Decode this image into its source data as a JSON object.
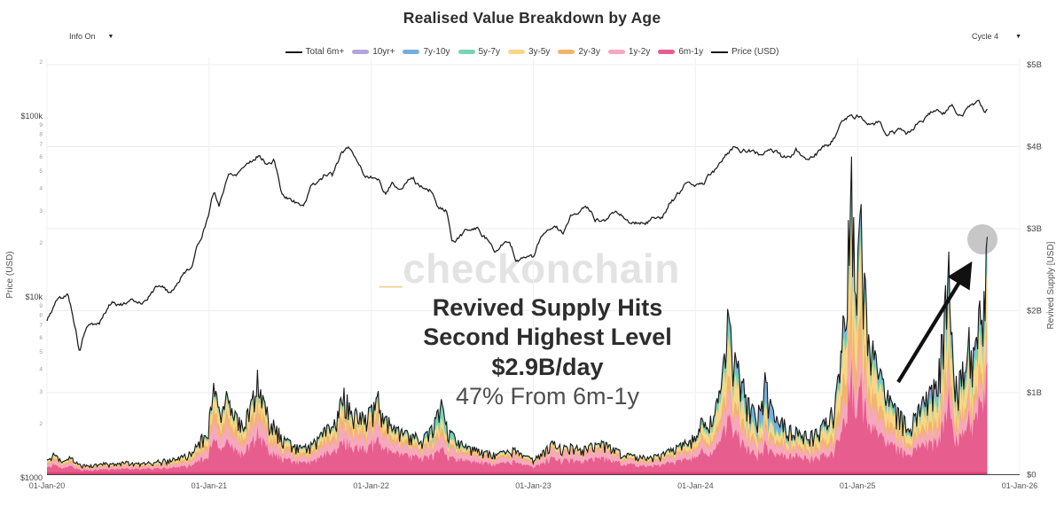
{
  "header": {
    "title": "Realised Value Breakdown by Age"
  },
  "controls": {
    "info_label": "Info On",
    "cycle_label": "Cycle 4",
    "caret": "▼"
  },
  "watermark": {
    "prefix": "_",
    "text": "checkonchain"
  },
  "annotation": {
    "line1": "Revived Supply Hits",
    "line2": "Second Highest Level",
    "line3": "$2.9B/day",
    "line4": "47% From 6m-1y"
  },
  "legend": [
    {
      "label": "Total 6m+",
      "color": "#1a1a1a",
      "type": "line"
    },
    {
      "label": "10yr+",
      "color": "#b3a4de",
      "type": "band"
    },
    {
      "label": "7y-10y",
      "color": "#74aede",
      "type": "band"
    },
    {
      "label": "5y-7y",
      "color": "#74d6b5",
      "type": "band"
    },
    {
      "label": "3y-5y",
      "color": "#f7d787",
      "type": "band"
    },
    {
      "label": "2y-3y",
      "color": "#f2b46c",
      "type": "band"
    },
    {
      "label": "1y-2y",
      "color": "#f6a8c0",
      "type": "band"
    },
    {
      "label": "6m-1y",
      "color": "#e75d8d",
      "type": "band"
    },
    {
      "label": "Price (USD)",
      "color": "#1a1a1a",
      "type": "line"
    }
  ],
  "chart_data": {
    "type": "area",
    "title": "Realised Value Breakdown by Age",
    "x_ticks": [
      [
        2020,
        "01-Jan-20"
      ],
      [
        2021,
        "01-Jan-21"
      ],
      [
        2022,
        "01-Jan-22"
      ],
      [
        2023,
        "01-Jan-23"
      ],
      [
        2024,
        "01-Jan-24"
      ],
      [
        2025,
        "01-Jan-25"
      ],
      [
        2026,
        "01-Jan-26"
      ]
    ],
    "y_left": {
      "title": "Price (USD)",
      "scale": "log",
      "range_usd": [
        1000,
        215000
      ],
      "major_ticks": [
        [
          100000,
          "$100k"
        ],
        [
          10000,
          "$10k"
        ],
        [
          1000,
          "$1000"
        ]
      ]
    },
    "y_right": {
      "title": "Revived Supply [USD]",
      "scale": "linear",
      "range_billions": [
        0,
        5
      ],
      "ticks": [
        [
          0,
          "$0"
        ],
        [
          1,
          "$1B"
        ],
        [
          2,
          "$2B"
        ],
        [
          3,
          "$3B"
        ],
        [
          4,
          "$4B"
        ],
        [
          5,
          "$5B"
        ]
      ]
    },
    "price_usd_keyframes": [
      [
        2020.0,
        7300
      ],
      [
        2020.06,
        9500
      ],
      [
        2020.13,
        10200
      ],
      [
        2020.2,
        5000
      ],
      [
        2020.24,
        6800
      ],
      [
        2020.32,
        7000
      ],
      [
        2020.4,
        9400
      ],
      [
        2020.5,
        9100
      ],
      [
        2020.6,
        9600
      ],
      [
        2020.7,
        11800
      ],
      [
        2020.76,
        10600
      ],
      [
        2020.83,
        13000
      ],
      [
        2020.9,
        15500
      ],
      [
        2020.96,
        23000
      ],
      [
        2021.0,
        29500
      ],
      [
        2021.03,
        38000
      ],
      [
        2021.06,
        32000
      ],
      [
        2021.12,
        47000
      ],
      [
        2021.17,
        49000
      ],
      [
        2021.22,
        55000
      ],
      [
        2021.27,
        58500
      ],
      [
        2021.31,
        63000
      ],
      [
        2021.36,
        55000
      ],
      [
        2021.4,
        57000
      ],
      [
        2021.45,
        37000
      ],
      [
        2021.5,
        34500
      ],
      [
        2021.55,
        33000
      ],
      [
        2021.58,
        31500
      ],
      [
        2021.62,
        39500
      ],
      [
        2021.68,
        44500
      ],
      [
        2021.72,
        48500
      ],
      [
        2021.76,
        47000
      ],
      [
        2021.82,
        61500
      ],
      [
        2021.86,
        66500
      ],
      [
        2021.92,
        57000
      ],
      [
        2021.96,
        47500
      ],
      [
        2022.0,
        46500
      ],
      [
        2022.05,
        43500
      ],
      [
        2022.09,
        38000
      ],
      [
        2022.13,
        44000
      ],
      [
        2022.17,
        40000
      ],
      [
        2022.22,
        43000
      ],
      [
        2022.26,
        46500
      ],
      [
        2022.3,
        41000
      ],
      [
        2022.36,
        39500
      ],
      [
        2022.42,
        29500
      ],
      [
        2022.46,
        30000
      ],
      [
        2022.5,
        19500
      ],
      [
        2022.55,
        21500
      ],
      [
        2022.6,
        23500
      ],
      [
        2022.65,
        24000
      ],
      [
        2022.7,
        21500
      ],
      [
        2022.76,
        19000
      ],
      [
        2022.8,
        20000
      ],
      [
        2022.85,
        19500
      ],
      [
        2022.89,
        16000
      ],
      [
        2022.94,
        16800
      ],
      [
        2023.0,
        16600
      ],
      [
        2023.05,
        21000
      ],
      [
        2023.09,
        23000
      ],
      [
        2023.14,
        24500
      ],
      [
        2023.18,
        22000
      ],
      [
        2023.23,
        28000
      ],
      [
        2023.28,
        27500
      ],
      [
        2023.33,
        29500
      ],
      [
        2023.38,
        26500
      ],
      [
        2023.44,
        27000
      ],
      [
        2023.5,
        30500
      ],
      [
        2023.55,
        29500
      ],
      [
        2023.6,
        26000
      ],
      [
        2023.65,
        26000
      ],
      [
        2023.7,
        26500
      ],
      [
        2023.76,
        27500
      ],
      [
        2023.8,
        28500
      ],
      [
        2023.85,
        34500
      ],
      [
        2023.9,
        37500
      ],
      [
        2023.95,
        42500
      ],
      [
        2024.0,
        43000
      ],
      [
        2024.05,
        42500
      ],
      [
        2024.1,
        48000
      ],
      [
        2024.14,
        52000
      ],
      [
        2024.18,
        62500
      ],
      [
        2024.22,
        68000
      ],
      [
        2024.26,
        70000
      ],
      [
        2024.3,
        66000
      ],
      [
        2024.35,
        64500
      ],
      [
        2024.4,
        61000
      ],
      [
        2024.45,
        67000
      ],
      [
        2024.49,
        66000
      ],
      [
        2024.53,
        58000
      ],
      [
        2024.58,
        61000
      ],
      [
        2024.62,
        65500
      ],
      [
        2024.66,
        58500
      ],
      [
        2024.7,
        55500
      ],
      [
        2024.74,
        60500
      ],
      [
        2024.78,
        64000
      ],
      [
        2024.82,
        67500
      ],
      [
        2024.86,
        75500
      ],
      [
        2024.9,
        91000
      ],
      [
        2024.94,
        98500
      ],
      [
        2024.98,
        95500
      ],
      [
        2025.02,
        102000
      ],
      [
        2025.06,
        97000
      ],
      [
        2025.1,
        95000
      ],
      [
        2025.14,
        97500
      ],
      [
        2025.18,
        84500
      ],
      [
        2025.22,
        86000
      ],
      [
        2025.26,
        82000
      ],
      [
        2025.3,
        77000
      ],
      [
        2025.34,
        85000
      ],
      [
        2025.38,
        94500
      ],
      [
        2025.42,
        97000
      ],
      [
        2025.46,
        103500
      ],
      [
        2025.5,
        106000
      ],
      [
        2025.54,
        108500
      ],
      [
        2025.58,
        118000
      ],
      [
        2025.62,
        108500
      ],
      [
        2025.66,
        113000
      ],
      [
        2025.7,
        116000
      ],
      [
        2025.74,
        123500
      ],
      [
        2025.78,
        112000
      ],
      [
        2025.8,
        109500
      ]
    ],
    "revived_total_billions_keyframes": [
      [
        2020.0,
        0.2
      ],
      [
        2020.05,
        0.28
      ],
      [
        2020.1,
        0.16
      ],
      [
        2020.15,
        0.24
      ],
      [
        2020.2,
        0.13
      ],
      [
        2020.28,
        0.12
      ],
      [
        2020.35,
        0.15
      ],
      [
        2020.42,
        0.14
      ],
      [
        2020.5,
        0.17
      ],
      [
        2020.58,
        0.14
      ],
      [
        2020.65,
        0.17
      ],
      [
        2020.72,
        0.19
      ],
      [
        2020.8,
        0.21
      ],
      [
        2020.88,
        0.28
      ],
      [
        2020.94,
        0.42
      ],
      [
        2021.0,
        0.72
      ],
      [
        2021.03,
        1.12
      ],
      [
        2021.07,
        0.78
      ],
      [
        2021.11,
        1.02
      ],
      [
        2021.15,
        0.8
      ],
      [
        2021.2,
        0.68
      ],
      [
        2021.25,
        0.84
      ],
      [
        2021.3,
        1.28
      ],
      [
        2021.34,
        0.92
      ],
      [
        2021.38,
        0.72
      ],
      [
        2021.43,
        0.58
      ],
      [
        2021.48,
        0.45
      ],
      [
        2021.53,
        0.38
      ],
      [
        2021.58,
        0.35
      ],
      [
        2021.63,
        0.42
      ],
      [
        2021.68,
        0.5
      ],
      [
        2021.73,
        0.62
      ],
      [
        2021.78,
        0.74
      ],
      [
        2021.83,
        1.06
      ],
      [
        2021.88,
        0.9
      ],
      [
        2021.93,
        0.76
      ],
      [
        2022.0,
        0.84
      ],
      [
        2022.04,
        1.02
      ],
      [
        2022.09,
        0.76
      ],
      [
        2022.14,
        0.62
      ],
      [
        2022.2,
        0.55
      ],
      [
        2022.26,
        0.52
      ],
      [
        2022.32,
        0.48
      ],
      [
        2022.38,
        0.62
      ],
      [
        2022.43,
        0.92
      ],
      [
        2022.47,
        0.6
      ],
      [
        2022.52,
        0.48
      ],
      [
        2022.58,
        0.4
      ],
      [
        2022.64,
        0.34
      ],
      [
        2022.7,
        0.3
      ],
      [
        2022.77,
        0.27
      ],
      [
        2022.83,
        0.3
      ],
      [
        2022.88,
        0.34
      ],
      [
        2022.94,
        0.24
      ],
      [
        2023.0,
        0.21
      ],
      [
        2023.06,
        0.3
      ],
      [
        2023.12,
        0.42
      ],
      [
        2023.18,
        0.36
      ],
      [
        2023.24,
        0.38
      ],
      [
        2023.3,
        0.34
      ],
      [
        2023.37,
        0.4
      ],
      [
        2023.43,
        0.42
      ],
      [
        2023.5,
        0.33
      ],
      [
        2023.57,
        0.27
      ],
      [
        2023.64,
        0.24
      ],
      [
        2023.72,
        0.23
      ],
      [
        2023.8,
        0.28
      ],
      [
        2023.88,
        0.36
      ],
      [
        2023.95,
        0.44
      ],
      [
        2024.0,
        0.52
      ],
      [
        2024.04,
        0.72
      ],
      [
        2024.08,
        0.66
      ],
      [
        2024.12,
        0.85
      ],
      [
        2024.16,
        1.15
      ],
      [
        2024.2,
        2.02
      ],
      [
        2024.24,
        1.55
      ],
      [
        2024.28,
        1.3
      ],
      [
        2024.33,
        0.95
      ],
      [
        2024.38,
        0.78
      ],
      [
        2024.43,
        1.25
      ],
      [
        2024.47,
        0.85
      ],
      [
        2024.52,
        0.72
      ],
      [
        2024.58,
        0.65
      ],
      [
        2024.64,
        0.56
      ],
      [
        2024.7,
        0.52
      ],
      [
        2024.76,
        0.6
      ],
      [
        2024.82,
        0.74
      ],
      [
        2024.86,
        0.95
      ],
      [
        2024.9,
        1.55
      ],
      [
        2024.93,
        2.75
      ],
      [
        2024.96,
        3.88
      ],
      [
        2024.99,
        2.55
      ],
      [
        2025.02,
        3.3
      ],
      [
        2025.05,
        2.35
      ],
      [
        2025.08,
        1.75
      ],
      [
        2025.12,
        1.45
      ],
      [
        2025.16,
        1.18
      ],
      [
        2025.21,
        0.92
      ],
      [
        2025.26,
        0.8
      ],
      [
        2025.31,
        0.68
      ],
      [
        2025.36,
        0.8
      ],
      [
        2025.41,
        0.98
      ],
      [
        2025.46,
        1.12
      ],
      [
        2025.5,
        1.35
      ],
      [
        2025.53,
        2.0
      ],
      [
        2025.56,
        2.72
      ],
      [
        2025.59,
        1.55
      ],
      [
        2025.62,
        1.22
      ],
      [
        2025.66,
        1.45
      ],
      [
        2025.69,
        1.8
      ],
      [
        2025.72,
        1.5
      ],
      [
        2025.75,
        2.15
      ],
      [
        2025.78,
        2.45
      ],
      [
        2025.8,
        2.9
      ]
    ],
    "cohorts": {
      "order": [
        "6m-1y",
        "1y-2y",
        "2y-3y",
        "3y-5y",
        "5y-7y",
        "7y-10y",
        "10yr+"
      ],
      "colors": [
        "#e75d8d",
        "#f6a8c0",
        "#f2b46c",
        "#f7d787",
        "#74d6b5",
        "#74aede",
        "#b3a4de"
      ],
      "share_keyframes": [
        [
          2020.0,
          0.5,
          0.22,
          0.1,
          0.11,
          0.04,
          0.02,
          0.01
        ],
        [
          2020.6,
          0.52,
          0.2,
          0.1,
          0.11,
          0.04,
          0.02,
          0.01
        ],
        [
          2021.0,
          0.42,
          0.2,
          0.14,
          0.16,
          0.05,
          0.02,
          0.01
        ],
        [
          2021.5,
          0.46,
          0.2,
          0.13,
          0.13,
          0.05,
          0.02,
          0.01
        ],
        [
          2021.85,
          0.45,
          0.2,
          0.13,
          0.14,
          0.05,
          0.02,
          0.01
        ],
        [
          2022.3,
          0.5,
          0.2,
          0.1,
          0.12,
          0.05,
          0.02,
          0.01
        ],
        [
          2022.43,
          0.36,
          0.17,
          0.1,
          0.12,
          0.19,
          0.04,
          0.02
        ],
        [
          2022.6,
          0.52,
          0.22,
          0.1,
          0.09,
          0.04,
          0.02,
          0.01
        ],
        [
          2023.3,
          0.55,
          0.25,
          0.08,
          0.07,
          0.03,
          0.01,
          0.01
        ],
        [
          2023.9,
          0.5,
          0.2,
          0.1,
          0.12,
          0.05,
          0.02,
          0.01
        ],
        [
          2024.2,
          0.38,
          0.15,
          0.1,
          0.22,
          0.1,
          0.03,
          0.02
        ],
        [
          2024.45,
          0.32,
          0.15,
          0.08,
          0.15,
          0.05,
          0.22,
          0.03
        ],
        [
          2024.6,
          0.45,
          0.18,
          0.1,
          0.15,
          0.06,
          0.04,
          0.02
        ],
        [
          2024.96,
          0.33,
          0.13,
          0.15,
          0.25,
          0.07,
          0.04,
          0.03
        ],
        [
          2025.1,
          0.4,
          0.15,
          0.12,
          0.2,
          0.07,
          0.04,
          0.02
        ],
        [
          2025.35,
          0.45,
          0.15,
          0.1,
          0.18,
          0.06,
          0.04,
          0.02
        ],
        [
          2025.5,
          0.36,
          0.12,
          0.1,
          0.2,
          0.08,
          0.05,
          0.09
        ],
        [
          2025.6,
          0.4,
          0.13,
          0.1,
          0.2,
          0.08,
          0.05,
          0.04
        ],
        [
          2025.8,
          0.47,
          0.1,
          0.08,
          0.2,
          0.09,
          0.04,
          0.02
        ]
      ]
    },
    "highlight": {
      "end_t": 2025.8,
      "end_value_billions": 2.9,
      "marker": "grey-circle",
      "arrow": true
    }
  }
}
